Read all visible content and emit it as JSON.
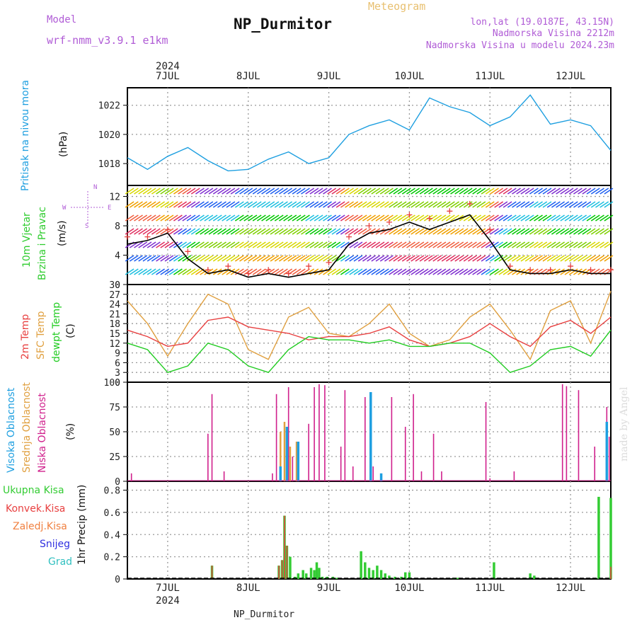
{
  "header": {
    "model_label": "Model",
    "model_name": "wrf-nmm_v3.9.1 e1km",
    "title": "NP_Durmitor",
    "meteogram_label": "Meteogram",
    "coords": "lon,lat (19.0187E, 43.15N)",
    "elevation": "Nadmorska Visina 2212m",
    "elevation_model": "Nadmorska Visina u modelu 2024.23m"
  },
  "footer_station": "NP_Durmitor",
  "watermark": "made by Angel",
  "colors": {
    "pressure": "#1e9fe0",
    "wind_label": "#2ecc2e",
    "temp2m": "#e84040",
    "sfc_temp": "#e0a040",
    "dewpt": "#22cc22",
    "high_cloud": "#1e9fe0",
    "mid_cloud": "#e0a040",
    "low_cloud": "#d0208c",
    "precip_total": "#33cc33",
    "precip_conv": "#e84040",
    "precip_frozen": "#f08040",
    "snow": "#3030e0",
    "graupel": "#30c0c0",
    "compass": "#b05cd6"
  },
  "chart_data": [
    {
      "type": "line",
      "title": "",
      "ylabel_lines": [
        "Pritisak na nivou mora",
        "(hPa)"
      ],
      "x_day_ticks": [
        "7JUL",
        "8JUL",
        "9JUL",
        "10JUL",
        "11JUL",
        "12JUL"
      ],
      "x_year": "2024",
      "yticks": [
        1018,
        1020,
        1022
      ],
      "ylim": [
        1016.5,
        1023.2
      ],
      "x_range_days": [
        -0.5,
        5.5
      ],
      "grid": true,
      "series": [
        {
          "name": "",
          "x": [
            -0.5,
            -0.25,
            0,
            0.25,
            0.5,
            0.75,
            1,
            1.25,
            1.5,
            1.75,
            2,
            2.25,
            2.5,
            2.75,
            3,
            3.25,
            3.5,
            3.75,
            4,
            4.25,
            4.5,
            4.75,
            5,
            5.25,
            5.5
          ],
          "values": [
            1018.4,
            1017.6,
            1018.5,
            1019.1,
            1018.2,
            1017.5,
            1017.6,
            1018.3,
            1018.8,
            1018.0,
            1018.4,
            1020.0,
            1020.6,
            1021.0,
            1020.3,
            1022.5,
            1021.9,
            1021.5,
            1020.6,
            1021.2,
            1022.7,
            1020.7,
            1021.0,
            1020.6,
            1018.9
          ]
        }
      ]
    },
    {
      "type": "line",
      "title": "",
      "ylabel_lines": [
        "10m Vjetar",
        "Brzina i Pravac",
        "(m/s)"
      ],
      "compass_labels": {
        "n": "N",
        "s": "S",
        "e": "E",
        "w": "W"
      },
      "yticks": [
        0,
        4,
        8,
        12
      ],
      "ylim": [
        0,
        13.5
      ],
      "x_range_days": [
        -0.5,
        5.5
      ],
      "grid": true,
      "series": [
        {
          "name": "wind speed",
          "x": [
            -0.5,
            -0.25,
            0,
            0.25,
            0.5,
            0.75,
            1,
            1.25,
            1.5,
            1.75,
            2,
            2.25,
            2.5,
            2.75,
            3,
            3.25,
            3.5,
            3.75,
            4,
            4.25,
            4.5,
            4.75,
            5,
            5.25,
            5.5
          ],
          "values": [
            5.5,
            6.0,
            7.0,
            3.5,
            1.5,
            2.0,
            1.0,
            1.5,
            1.0,
            1.5,
            2.0,
            5.5,
            7.0,
            7.5,
            8.5,
            7.5,
            8.5,
            9.5,
            6.0,
            2.0,
            1.5,
            1.5,
            2.0,
            1.5,
            1.5
          ]
        },
        {
          "name": "gust",
          "x": [
            -0.5,
            -0.25,
            0,
            0.25,
            0.5,
            0.75,
            1,
            1.25,
            1.5,
            1.75,
            2,
            2.25,
            2.5,
            2.75,
            3,
            3.25,
            3.5,
            3.75,
            4,
            4.25,
            4.5,
            4.75,
            5,
            5.25,
            5.5
          ],
          "values": [
            6.5,
            6.5,
            7.5,
            4.5,
            2.0,
            2.5,
            1.5,
            2.0,
            1.5,
            2.5,
            3.0,
            6.5,
            8.0,
            8.5,
            9.5,
            9.0,
            10.0,
            11.0,
            7.5,
            2.5,
            2.0,
            2.0,
            2.5,
            2.0,
            2.0
          ]
        }
      ]
    },
    {
      "type": "line",
      "title": "",
      "ylabel_lines": [
        "2m Temp",
        "SFC Temp",
        "dewpt Temp",
        "(C)"
      ],
      "yticks": [
        0,
        3,
        6,
        9,
        12,
        15,
        18,
        21,
        24,
        27,
        30
      ],
      "ylim": [
        0,
        30
      ],
      "x_range_days": [
        -0.5,
        5.5
      ],
      "grid": true,
      "series": [
        {
          "name": "2m Temp",
          "x": [
            -0.5,
            -0.25,
            0,
            0.25,
            0.5,
            0.75,
            1,
            1.25,
            1.5,
            1.75,
            2,
            2.25,
            2.5,
            2.75,
            3,
            3.25,
            3.5,
            3.75,
            4,
            4.25,
            4.5,
            4.75,
            5,
            5.25,
            5.5
          ],
          "values": [
            16,
            14,
            11,
            12,
            19,
            20,
            17,
            16,
            15,
            13,
            14,
            14,
            15,
            17,
            13,
            11,
            12,
            14,
            18,
            14,
            11,
            17,
            19,
            15,
            20
          ]
        },
        {
          "name": "SFC Temp",
          "x": [
            -0.5,
            -0.25,
            0,
            0.25,
            0.5,
            0.75,
            1,
            1.25,
            1.5,
            1.75,
            2,
            2.25,
            2.5,
            2.75,
            3,
            3.25,
            3.5,
            3.75,
            4,
            4.25,
            4.5,
            4.75,
            5,
            5.25,
            5.5
          ],
          "values": [
            25,
            18,
            8,
            18,
            27,
            24,
            10,
            7,
            20,
            23,
            15,
            14,
            18,
            24,
            15,
            11,
            13,
            20,
            24,
            16,
            7,
            22,
            25,
            12,
            28
          ]
        },
        {
          "name": "dewpt Temp",
          "x": [
            -0.5,
            -0.25,
            0,
            0.25,
            0.5,
            0.75,
            1,
            1.25,
            1.5,
            1.75,
            2,
            2.25,
            2.5,
            2.75,
            3,
            3.25,
            3.5,
            3.75,
            4,
            4.25,
            4.5,
            4.75,
            5,
            5.25,
            5.5
          ],
          "values": [
            12,
            10,
            3,
            5,
            12,
            10,
            5,
            3,
            10,
            14,
            13,
            13,
            12,
            13,
            11,
            11,
            12,
            12,
            9,
            3,
            5,
            10,
            11,
            8,
            16
          ]
        }
      ]
    },
    {
      "type": "bar",
      "title": "",
      "ylabel_lines": [
        "Visoka Oblacnost",
        "Srednja Oblacnost",
        "Niska Oblacnost",
        "(%)"
      ],
      "yticks": [
        0,
        25,
        50,
        75,
        100
      ],
      "ylim": [
        0,
        100
      ],
      "x_range_days": [
        -0.5,
        5.5
      ],
      "grid": true,
      "series": [
        {
          "name": "Niska Oblacnost",
          "x": [
            -0.45,
            0.5,
            0.55,
            0.7,
            1.3,
            1.35,
            1.45,
            1.5,
            1.55,
            1.62,
            1.75,
            1.82,
            1.88,
            1.95,
            2.15,
            2.2,
            2.3,
            2.45,
            2.55,
            2.78,
            2.95,
            3.05,
            3.15,
            3.3,
            3.4,
            3.95,
            4.0,
            4.3,
            4.9,
            4.95,
            5.1,
            5.3,
            5.45,
            5.48
          ],
          "values": [
            8,
            48,
            88,
            10,
            8,
            88,
            58,
            95,
            25,
            35,
            58,
            95,
            98,
            97,
            35,
            92,
            15,
            85,
            15,
            85,
            55,
            88,
            10,
            48,
            10,
            80,
            3,
            10,
            98,
            96,
            92,
            35,
            75,
            45
          ]
        },
        {
          "name": "Srednja Oblacnost",
          "x": [
            1.4,
            1.45,
            1.52,
            1.6
          ],
          "values": [
            50,
            60,
            35,
            40
          ]
        },
        {
          "name": "Visoka Oblacnost",
          "x": [
            1.4,
            1.48,
            1.62,
            2.52,
            2.65,
            5.45
          ],
          "values": [
            15,
            55,
            40,
            90,
            8,
            60
          ]
        }
      ]
    },
    {
      "type": "bar",
      "title": "",
      "ylabel_lines": [
        "Ukupna Kisa",
        "Konvek.Kisa",
        "Zaledj.Kisa",
        "Snijeg",
        "Grad",
        "1hr Precip (mm)"
      ],
      "yticks": [
        0,
        0.2,
        0.4,
        0.6,
        0.8
      ],
      "ylim": [
        0,
        0.88
      ],
      "x_range_days": [
        -0.5,
        5.5
      ],
      "grid": true,
      "series": [
        {
          "name": "Ukupna Kisa",
          "x": [
            0.55,
            1.38,
            1.42,
            1.45,
            1.48,
            1.52,
            1.58,
            1.62,
            1.68,
            1.72,
            1.78,
            1.82,
            1.85,
            1.88,
            1.92,
            1.98,
            2.05,
            2.1,
            2.4,
            2.45,
            2.5,
            2.55,
            2.6,
            2.65,
            2.7,
            2.75,
            2.82,
            2.9,
            2.95,
            3.0,
            3.55,
            3.6,
            4.05,
            4.5,
            4.55,
            5.35,
            5.5
          ],
          "values": [
            0.12,
            0.12,
            0.17,
            0.57,
            0.3,
            0.2,
            0.02,
            0.05,
            0.08,
            0.05,
            0.1,
            0.08,
            0.15,
            0.1,
            0.02,
            0.02,
            0.02,
            0.01,
            0.25,
            0.15,
            0.1,
            0.08,
            0.12,
            0.08,
            0.05,
            0.03,
            0.02,
            0.02,
            0.06,
            0.06,
            0.01,
            0.01,
            0.15,
            0.05,
            0.03,
            0.74,
            0.73
          ]
        },
        {
          "name": "Konvek.Kisa",
          "x": [
            0.55,
            1.38,
            1.42,
            1.45,
            1.48,
            5.5
          ],
          "values": [
            0.12,
            0.12,
            0.17,
            0.57,
            0.3,
            0.11
          ]
        },
        {
          "name": "Zaledj.Kisa",
          "x": [],
          "values": []
        },
        {
          "name": "Snijeg",
          "x": [],
          "values": []
        },
        {
          "name": "Grad",
          "x": [],
          "values": []
        }
      ]
    }
  ]
}
